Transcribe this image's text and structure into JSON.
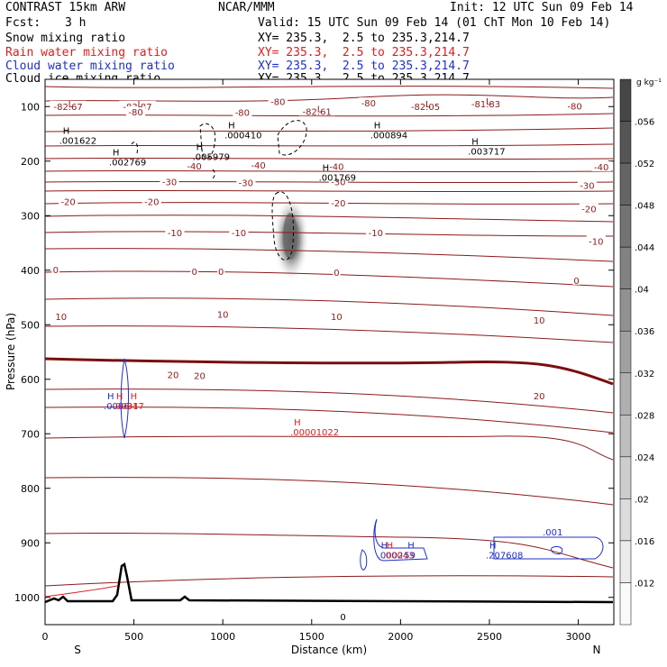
{
  "header": {
    "model": "CONTRAST 15km ARW",
    "org": "NCAR/MMM",
    "init": "Init: 12 UTC Sun 09 Feb 14",
    "fcst_label": "Fcst:",
    "fcst_value": "3 h",
    "valid": "Valid: 15 UTC Sun 09 Feb 14 (01 ChT Mon 10 Feb 14)",
    "legend": [
      {
        "name": "Snow mixing ratio",
        "xy": "XY= 235.3,  2.5 to 235.3,214.7",
        "color": "#000000"
      },
      {
        "name": "Rain water mixing ratio",
        "xy": "XY= 235.3,  2.5 to 235.3,214.7",
        "color": "#d81e1e"
      },
      {
        "name": "Cloud water mixing ratio",
        "xy": "XY= 235.3,  2.5 to 235.3,214.7",
        "color": "#1f2fc8"
      },
      {
        "name": "Cloud ice mixing ratio",
        "xy": "XY= 235.3,  2.5 to 235.3,214.7",
        "color": "#000000"
      }
    ]
  },
  "chart_data": {
    "type": "cross-section contour",
    "title": "CONTRAST 15km ARW",
    "xlabel": "Distance (km)",
    "ylabel": "Pressure (hPa)",
    "xlim": [
      0,
      3200
    ],
    "ylim": [
      1050,
      50
    ],
    "xticks": [
      0,
      500,
      1000,
      1500,
      2000,
      2500,
      3000
    ],
    "yticks": [
      100,
      200,
      300,
      400,
      500,
      600,
      700,
      800,
      900,
      1000
    ],
    "x_end_labels": {
      "left": "S",
      "right": "N"
    },
    "colorbar": {
      "unit": "g kg⁻¹",
      "ticks": [
        ".056",
        ".052",
        ".048",
        ".044",
        ".04",
        ".036",
        ".032",
        ".028",
        ".024",
        ".02",
        ".016",
        ".012"
      ]
    },
    "temperature_contour_labels": [
      {
        "x": 130,
        "p": 101,
        "text": "-82.67"
      },
      {
        "x": 520,
        "p": 101,
        "text": "-83.87"
      },
      {
        "x": 1530,
        "p": 110,
        "text": "-82.61"
      },
      {
        "x": 2140,
        "p": 101,
        "text": "-82.05"
      },
      {
        "x": 2480,
        "p": 96,
        "text": "-81.83"
      },
      {
        "x": 510,
        "p": 111,
        "text": "-80"
      },
      {
        "x": 1110,
        "p": 112,
        "text": "-80"
      },
      {
        "x": 1310,
        "p": 92,
        "text": "-80"
      },
      {
        "x": 1820,
        "p": 95,
        "text": "-80"
      },
      {
        "x": 2980,
        "p": 100,
        "text": "-80"
      },
      {
        "x": 840,
        "p": 210,
        "text": "-40"
      },
      {
        "x": 1200,
        "p": 209,
        "text": "-40"
      },
      {
        "x": 1640,
        "p": 211,
        "text": "-40"
      },
      {
        "x": 3130,
        "p": 212,
        "text": "-40"
      },
      {
        "x": 700,
        "p": 239,
        "text": "-30"
      },
      {
        "x": 1130,
        "p": 241,
        "text": "-30"
      },
      {
        "x": 1650,
        "p": 239,
        "text": "-30"
      },
      {
        "x": 3050,
        "p": 246,
        "text": "-30"
      },
      {
        "x": 130,
        "p": 276,
        "text": "-20"
      },
      {
        "x": 600,
        "p": 276,
        "text": "-20"
      },
      {
        "x": 1650,
        "p": 278,
        "text": "-20"
      },
      {
        "x": 3060,
        "p": 289,
        "text": "-20"
      },
      {
        "x": 730,
        "p": 333,
        "text": "-10"
      },
      {
        "x": 1090,
        "p": 333,
        "text": "-10"
      },
      {
        "x": 1860,
        "p": 333,
        "text": "-10"
      },
      {
        "x": 3100,
        "p": 348,
        "text": "-10"
      },
      {
        "x": 60,
        "p": 400,
        "text": "0"
      },
      {
        "x": 840,
        "p": 404,
        "text": "0"
      },
      {
        "x": 990,
        "p": 404,
        "text": "0"
      },
      {
        "x": 1640,
        "p": 405,
        "text": "0"
      },
      {
        "x": 2990,
        "p": 420,
        "text": "0"
      },
      {
        "x": 90,
        "p": 486,
        "text": "10"
      },
      {
        "x": 1000,
        "p": 482,
        "text": "10"
      },
      {
        "x": 1640,
        "p": 486,
        "text": "10"
      },
      {
        "x": 2780,
        "p": 493,
        "text": "10"
      },
      {
        "x": 720,
        "p": 593,
        "text": "20"
      },
      {
        "x": 870,
        "p": 595,
        "text": "20"
      },
      {
        "x": 2780,
        "p": 632,
        "text": "20"
      }
    ],
    "extrema_labels": [
      {
        "x": 130,
        "p": 101,
        "kind": "L",
        "color": "#8b1a1a",
        "value": ""
      },
      {
        "x": 520,
        "p": 101,
        "kind": "L",
        "color": "#8b1a1a",
        "value": ""
      },
      {
        "x": 1530,
        "p": 110,
        "kind": "L",
        "color": "#8b1a1a",
        "value": ""
      },
      {
        "x": 2140,
        "p": 101,
        "kind": "L",
        "color": "#8b1a1a",
        "value": ""
      },
      {
        "x": 2480,
        "p": 96,
        "kind": "L",
        "color": "#8b1a1a",
        "value": ""
      },
      {
        "x": 100,
        "p": 150,
        "kind": "H",
        "color": "#000000",
        "value": ".001622"
      },
      {
        "x": 1030,
        "p": 140,
        "kind": "H",
        "color": "#000000",
        "value": ".000410"
      },
      {
        "x": 1850,
        "p": 140,
        "kind": "H",
        "color": "#000000",
        "value": ".000894"
      },
      {
        "x": 2400,
        "p": 170,
        "kind": "H",
        "color": "#000000",
        "value": ".003717"
      },
      {
        "x": 850,
        "p": 180,
        "kind": "H",
        "color": "#000000",
        "value": ".005979"
      },
      {
        "x": 380,
        "p": 190,
        "kind": "H",
        "color": "#000000",
        "value": ".002769"
      },
      {
        "x": 1560,
        "p": 218,
        "kind": "H",
        "color": "#000000",
        "value": ".001769"
      },
      {
        "x": 350,
        "p": 637,
        "kind": "H",
        "color": "#1f2fc8",
        "value": ".0006"
      },
      {
        "x": 400,
        "p": 637,
        "kind": "H",
        "color": "#d81e1e",
        "value": ".00017"
      },
      {
        "x": 480,
        "p": 637,
        "kind": "H",
        "color": "#d81e1e",
        "value": "34"
      },
      {
        "x": 1400,
        "p": 685,
        "kind": "H",
        "color": "#d81e1e",
        "value": ".00001022"
      },
      {
        "x": 1890,
        "p": 910,
        "kind": "H",
        "color": "#1f2fc8",
        "value": ".0002"
      },
      {
        "x": 1920,
        "p": 910,
        "kind": "H",
        "color": "#d81e1e",
        "value": ".00043"
      },
      {
        "x": 2040,
        "p": 910,
        "kind": "H",
        "color": "#1f2fc8",
        "value": "59"
      },
      {
        "x": 2500,
        "p": 910,
        "kind": "H",
        "color": "#1f2fc8",
        "value": ".207608"
      }
    ],
    "cloud_water_label": {
      "x": 2800,
      "p": 880,
      "text": ".001"
    },
    "surface_label": {
      "x": 1660,
      "p": 1035,
      "text": "0"
    }
  }
}
